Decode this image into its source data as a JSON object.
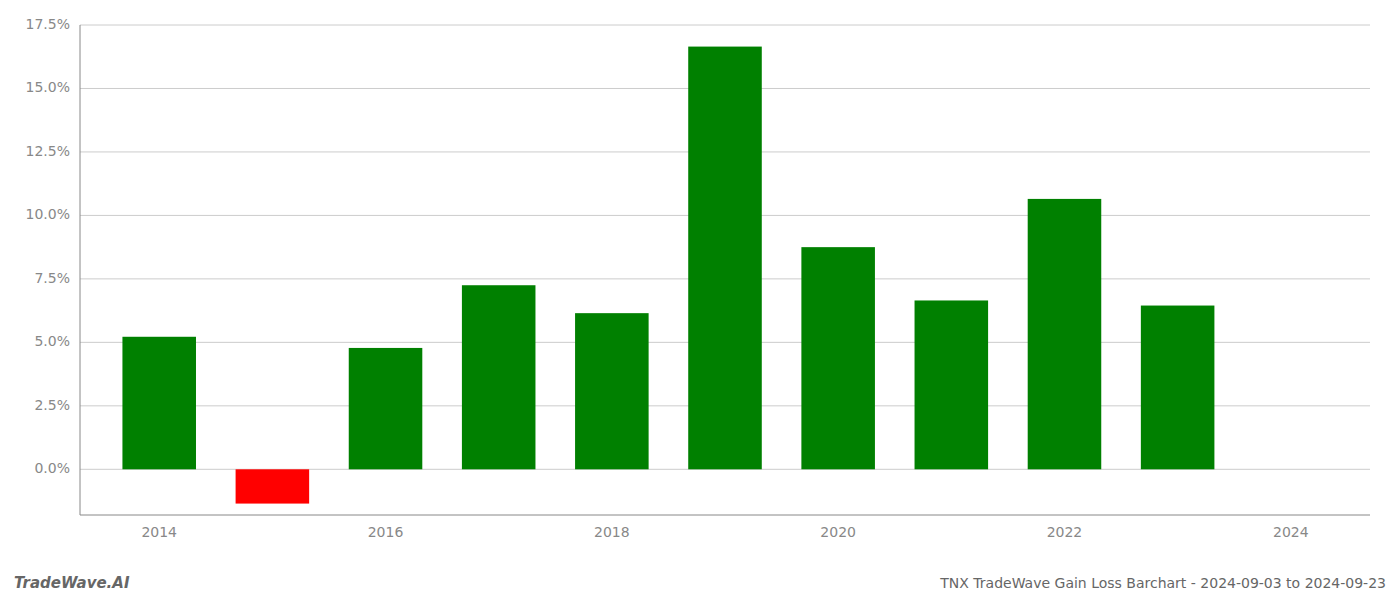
{
  "chart_data": {
    "type": "bar",
    "title": "TNX TradeWave Gain Loss Barchart - 2024-09-03 to 2024-09-23",
    "annotations": [
      "TradeWave.AI"
    ],
    "x": [
      2014,
      2015,
      2016,
      2017,
      2018,
      2019,
      2020,
      2021,
      2022,
      2023
    ],
    "values": [
      0.0522,
      -0.0135,
      0.0478,
      0.0725,
      0.0615,
      0.1665,
      0.0875,
      0.0665,
      0.1065,
      0.0645
    ],
    "colors": [
      "#008000",
      "#ff0000",
      "#008000",
      "#008000",
      "#008000",
      "#008000",
      "#008000",
      "#008000",
      "#008000",
      "#008000"
    ],
    "xlim": [
      2013.3,
      2024.7
    ],
    "xticks": [
      2014,
      2016,
      2018,
      2020,
      2022,
      2024
    ],
    "ylim": [
      -0.018,
      0.175
    ],
    "yticks": [
      {
        "value": 0,
        "label": "0.0%"
      },
      {
        "value": 0.025,
        "label": "2.5%"
      },
      {
        "value": 0.05,
        "label": "5.0%"
      },
      {
        "value": 0.075,
        "label": "7.5%"
      },
      {
        "value": 0.1,
        "label": "10.0%"
      },
      {
        "value": 0.125,
        "label": "12.5%"
      },
      {
        "value": 0.15,
        "label": "15.0%"
      },
      {
        "value": 0.175,
        "label": "17.5%"
      }
    ],
    "grid": true
  }
}
